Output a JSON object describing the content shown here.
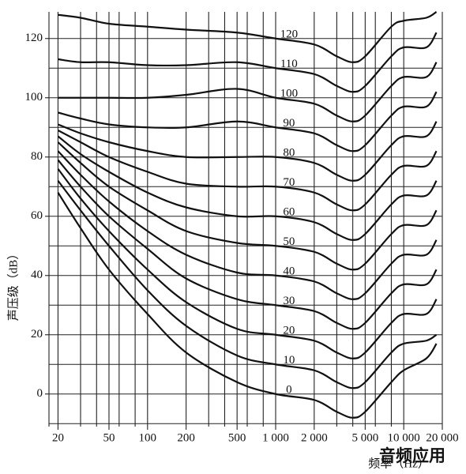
{
  "chart_data": {
    "type": "line",
    "y_label": "声压级（dB）",
    "x_label": "频率（Hz）",
    "watermark": "音频应用",
    "log_x": true,
    "grid": true,
    "xlim": [
      17,
      20000
    ],
    "ylim": [
      -11,
      129
    ],
    "xticks": [
      20,
      50,
      100,
      200,
      500,
      {
        "value": 1000,
        "label": "1 000"
      },
      {
        "value": 2000,
        "label": "2 000"
      },
      {
        "value": 5000,
        "label": "5 000"
      },
      {
        "value": 10000,
        "label": "10 000"
      },
      {
        "value": 20000,
        "label": "20 000"
      }
    ],
    "yticks": [
      0,
      20,
      40,
      60,
      80,
      100,
      120
    ],
    "x_grid": [
      20,
      30,
      40,
      50,
      60,
      80,
      100,
      200,
      300,
      400,
      500,
      600,
      800,
      1000,
      2000,
      3000,
      4000,
      5000,
      6000,
      8000,
      10000,
      20000
    ],
    "y_grid": [
      -10,
      0,
      10,
      20,
      30,
      40,
      50,
      60,
      70,
      80,
      90,
      100,
      110,
      120
    ],
    "x": [
      20,
      30,
      50,
      100,
      200,
      500,
      1000,
      2000,
      3000,
      4000,
      5000,
      8000,
      10000,
      15000,
      18000
    ],
    "series": [
      {
        "name": "0",
        "color": "#111",
        "values": [
          68,
          56,
          42,
          27,
          14,
          4,
          0,
          -2,
          -6,
          -8,
          -6,
          4,
          8,
          12,
          17
        ]
      },
      {
        "name": "10",
        "color": "#111",
        "values": [
          72,
          62,
          50,
          35,
          23,
          13,
          10,
          8,
          4,
          2,
          4,
          14,
          17,
          18,
          20
        ]
      },
      {
        "name": "20",
        "color": "#111",
        "values": [
          76,
          66,
          55,
          42,
          31,
          22,
          20,
          18,
          14,
          12,
          14,
          24,
          27,
          27,
          32
        ]
      },
      {
        "name": "30",
        "color": "#111",
        "values": [
          79,
          70,
          60,
          49,
          39,
          32,
          30,
          28,
          24,
          22,
          24,
          34,
          37,
          37,
          42
        ]
      },
      {
        "name": "40",
        "color": "#111",
        "values": [
          82,
          74,
          65,
          55,
          47,
          41,
          40,
          38,
          34,
          32,
          34,
          44,
          47,
          47,
          52
        ]
      },
      {
        "name": "50",
        "color": "#111",
        "values": [
          85,
          78,
          70,
          62,
          55,
          51,
          50,
          48,
          44,
          42,
          44,
          54,
          57,
          57,
          62
        ]
      },
      {
        "name": "60",
        "color": "#111",
        "values": [
          87,
          81,
          75,
          68,
          63,
          60,
          60,
          58,
          54,
          52,
          54,
          64,
          67,
          67,
          72
        ]
      },
      {
        "name": "70",
        "color": "#111",
        "values": [
          89,
          85,
          80,
          75,
          71,
          70,
          70,
          68,
          64,
          62,
          64,
          74,
          77,
          77,
          82
        ]
      },
      {
        "name": "80",
        "color": "#111",
        "values": [
          91,
          88,
          85,
          82,
          80,
          80,
          80,
          78,
          74,
          72,
          74,
          84,
          87,
          87,
          92
        ]
      },
      {
        "name": "90",
        "color": "#111",
        "values": [
          95,
          93,
          91,
          90,
          90,
          92,
          90,
          88,
          84,
          82,
          84,
          94,
          97,
          97,
          102
        ]
      },
      {
        "name": "100",
        "color": "#111",
        "values": [
          100,
          100,
          100,
          100,
          101,
          103,
          100,
          98,
          94,
          92,
          94,
          104,
          107,
          107,
          112
        ]
      },
      {
        "name": "110",
        "color": "#111",
        "values": [
          113,
          112,
          112,
          111,
          111,
          112,
          110,
          108,
          104,
          102,
          104,
          114,
          117,
          117,
          122
        ]
      },
      {
        "name": "120",
        "color": "#111",
        "values": [
          128,
          127,
          125,
          124,
          123,
          122,
          120,
          118,
          114,
          112,
          114,
          124,
          126,
          127,
          129
        ]
      }
    ]
  }
}
